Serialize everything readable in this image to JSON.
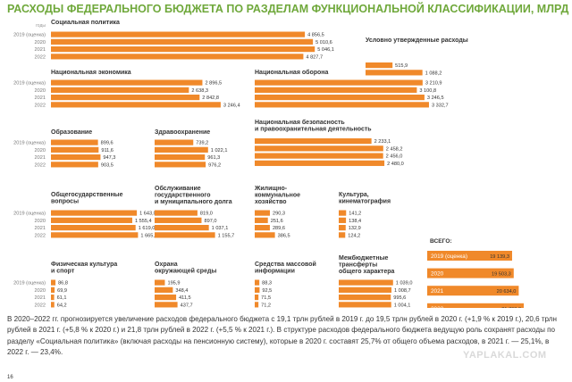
{
  "chart_data": {
    "type": "bar",
    "orientation": "horizontal",
    "title": "РАСХОДЫ ФЕДЕРАЛЬНОГО БЮДЖЕТА ПО РАЗДЕЛАМ ФУНКЦИОНАЛЬНОЙ КЛАССИФИКАЦИИ, МЛРД РУБЛЕЙ",
    "years_header": "годы",
    "years": [
      "2019 (оценка)",
      "2020",
      "2021",
      "2022"
    ],
    "bar_color": "#f0892a",
    "title_color": "#6fa83b",
    "panels": [
      {
        "title": [
          "Социальная политика"
        ],
        "values": [
          4856.5,
          5010.6,
          5046.1,
          4827.7
        ],
        "labels": [
          "4 856,5",
          "5 010,6",
          "5 046,1",
          "4 827,7"
        ]
      },
      {
        "title": [
          "Условно утвержденные расходы"
        ],
        "values": [
          0,
          0,
          515.9,
          1088.2
        ],
        "labels": [
          "",
          "",
          "515,9",
          "1 088,2"
        ]
      },
      {
        "title": [
          "Национальная экономика"
        ],
        "values": [
          2896.5,
          2638.3,
          2842.8,
          3246.4
        ],
        "labels": [
          "2 896,5",
          "2 638,3",
          "2 842,8",
          "3 246,4"
        ]
      },
      {
        "title": [
          "Национальная оборона"
        ],
        "values": [
          3210.9,
          3100.8,
          3246.5,
          3332.7
        ],
        "labels": [
          "3 210,9",
          "3 100,8",
          "3 246,5",
          "3 332,7"
        ]
      },
      {
        "title": [
          "Национальная безопасность",
          "и правоохранительная деятельность"
        ],
        "values": [
          2233.1,
          2458.2,
          2456.0,
          2480.0
        ],
        "labels": [
          "2 233,1",
          "2 458,2",
          "2 456,0",
          "2 480,0"
        ]
      },
      {
        "title": [
          "Образование"
        ],
        "values": [
          899.6,
          911.6,
          947.3,
          903.5
        ],
        "labels": [
          "899,6",
          "911,6",
          "947,3",
          "903,5"
        ]
      },
      {
        "title": [
          "Здравоохранение"
        ],
        "values": [
          739.2,
          1022.1,
          961.3,
          976.2
        ],
        "labels": [
          "739,2",
          "1 022,1",
          "961,3",
          "976,2"
        ]
      },
      {
        "title": [
          "Общегосударственные",
          "вопросы"
        ],
        "values": [
          1643.0,
          1555.4,
          1619.0,
          1665.1
        ],
        "labels": [
          "1 643,0",
          "1 555,4",
          "1 619,0",
          "1 665,1"
        ]
      },
      {
        "title": [
          "Обслуживание",
          "государственного",
          "и муниципального долга"
        ],
        "values": [
          819.0,
          897.0,
          1037.1,
          1155.7
        ],
        "labels": [
          "819,0",
          "897,0",
          "1 037,1",
          "1 155,7"
        ]
      },
      {
        "title": [
          "Жилищно-",
          "коммунальное",
          "хозяйство"
        ],
        "values": [
          290.3,
          251.6,
          289.6,
          386.5
        ],
        "labels": [
          "290,3",
          "251,6",
          "289,6",
          "386,5"
        ]
      },
      {
        "title": [
          "Культура,",
          "кинематография"
        ],
        "values": [
          141.2,
          138.4,
          132.9,
          124.2
        ],
        "labels": [
          "141,2",
          "138,4",
          "132,9",
          "124,2"
        ]
      },
      {
        "title": [
          "Физическая культура",
          "и спорт"
        ],
        "values": [
          86.8,
          69.9,
          61.1,
          64.2
        ],
        "labels": [
          "86,8",
          "69,9",
          "61,1",
          "64,2"
        ]
      },
      {
        "title": [
          "Охрана",
          "окружающей среды"
        ],
        "values": [
          195.9,
          348.4,
          411.5,
          437.7
        ],
        "labels": [
          "195,9",
          "348,4",
          "411,5",
          "437,7"
        ]
      },
      {
        "title": [
          "Средства массовой",
          "информации"
        ],
        "values": [
          88.3,
          92.5,
          71.5,
          71.2
        ],
        "labels": [
          "88,3",
          "92,5",
          "71,5",
          "71,2"
        ]
      },
      {
        "title": [
          "Межбюджетные",
          "трансферты",
          "общего характера"
        ],
        "values": [
          1039.0,
          1008.7,
          995.6,
          1004.1
        ],
        "labels": [
          "1 039,0",
          "1 008,7",
          "995,6",
          "1 004,1"
        ]
      }
    ],
    "totals": {
      "title": "ВСЕГО:",
      "years": [
        "2019 (оценка)",
        "2020",
        "2021",
        "2022"
      ],
      "values": [
        19139.3,
        19503.3,
        20634.0,
        21763.3
      ],
      "labels": [
        "19 139,3",
        "19 503,3",
        "20 634,0",
        "21 763,3"
      ]
    }
  },
  "text": {
    "paragraph": "В 2020–2022 гг. прогнозируется увеличение расходов федерального бюджета с 19,1 трлн рублей в 2019 г. до 19,5 трлн рублей в 2020 г. (+1,9 % к 2019 г.), 20,6 трлн рублей в 2021 г. (+5,8 % к 2020 г.) и 21,8 трлн рублей в 2022 г. (+5,5 % к 2021 г.). В структуре расходов федерального бюджета ведущую роль сохранят расходы по разделу «Социальная политика» (включая расходы на пенсионную систему), которые в 2020 г. составят 25,7% от общего объема расходов, в 2021 г. — 25,1%, в 2022 г. — 23,4%.",
    "page_number": "16",
    "watermark": "YAPLAKAL.COM"
  }
}
